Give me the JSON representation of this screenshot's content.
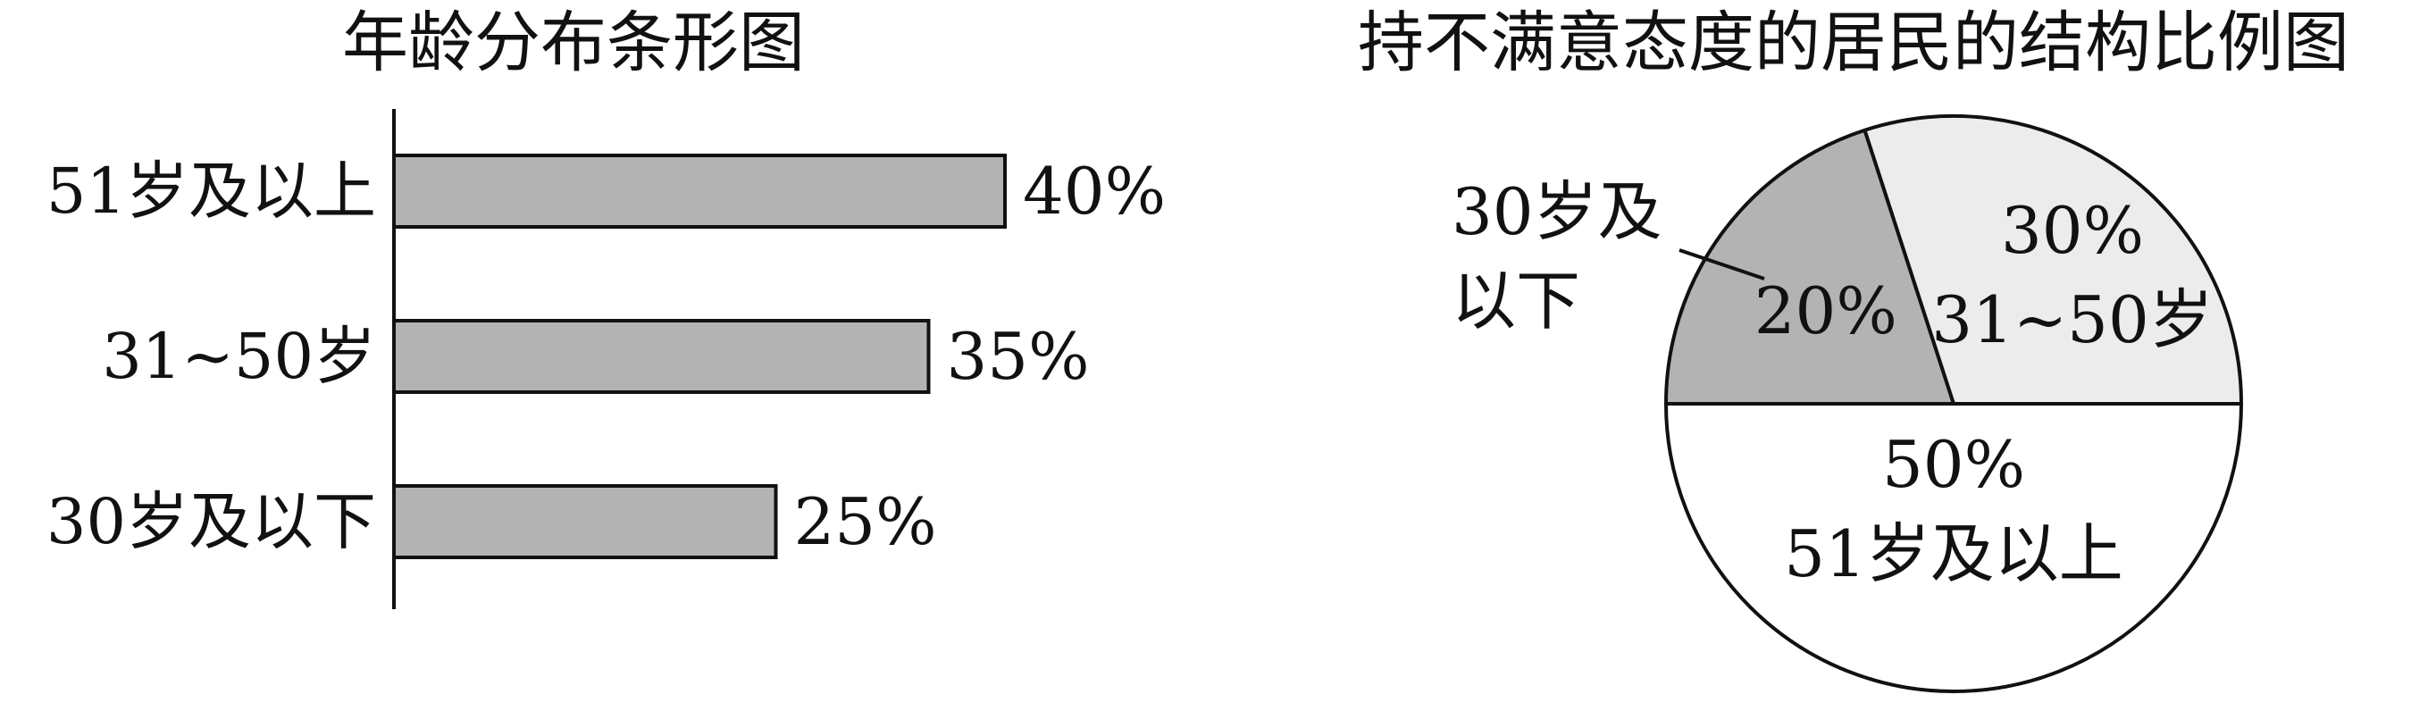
{
  "charts": [
    {
      "title": "年龄分布条形图",
      "chart_data": {
        "type": "bar",
        "orientation": "horizontal",
        "categories": [
          "51岁及以上",
          "31~50岁",
          "30岁及以下"
        ],
        "values": [
          40,
          35,
          25
        ],
        "value_labels": [
          "40%",
          "35%",
          "25%"
        ],
        "bar_color": "#b3b3b3",
        "title": "年龄分布条形图",
        "xlim": [
          0,
          40
        ]
      }
    },
    {
      "title": "持不满意态度的居民的结构比例图",
      "chart_data": {
        "type": "pie",
        "title": "持不满意态度的居民的结构比例图",
        "slices": [
          {
            "category": "51岁及以上",
            "value": 50,
            "value_label": "50%",
            "color": "#ffffff"
          },
          {
            "category": "30岁及以下",
            "value": 20,
            "value_label": "20%",
            "color": "#b3b3b3"
          },
          {
            "category": "31~50岁",
            "value": 30,
            "value_label": "30%",
            "color": "#ececec"
          }
        ],
        "callout_label_lines": [
          "30岁及",
          "以下"
        ]
      }
    }
  ]
}
